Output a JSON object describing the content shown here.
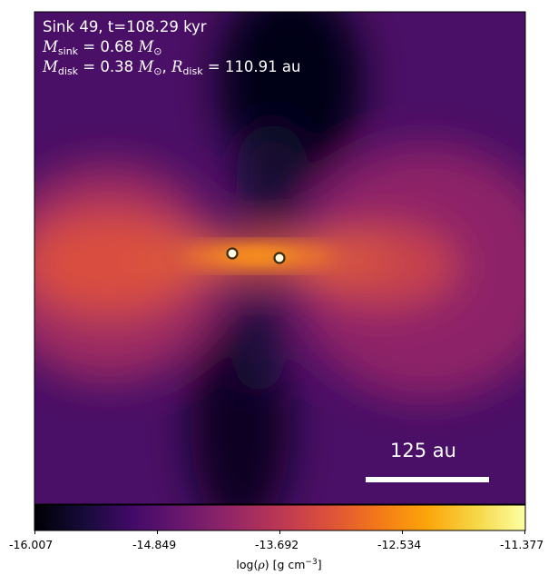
{
  "panel": {
    "title_line": "Sink 49, t=108.29 kyr",
    "m_sink": {
      "symbol": "M",
      "subscript": "sink",
      "value_text": " = 0.68 ",
      "unit": "M",
      "unit_sub": "⊙"
    },
    "m_disk": {
      "symbol": "M",
      "subscript": "disk",
      "value_text": " = 0.38 ",
      "unit": "M",
      "unit_sub": "⊙"
    },
    "r_disk": {
      "symbol": "R",
      "subscript": "disk",
      "value_text": " = 110.91 au"
    },
    "scale_bar_label": "125 au"
  },
  "colorbar": {
    "colormap": "inferno",
    "ticks": [
      "-16.007",
      "-14.849",
      "-13.692",
      "-12.534",
      "-11.377"
    ],
    "label_prefix": "log(",
    "label_rho": "ρ",
    "label_units": ") [g cm",
    "label_exp": "−3",
    "label_suffix": "]",
    "range": [
      -16.007,
      -11.377
    ]
  },
  "sinks": [
    {
      "name": "sink-particle-1"
    },
    {
      "name": "sink-particle-2"
    }
  ],
  "colors": {
    "background": "#ffffff",
    "annotation_text": "#ffffff",
    "sink_fill": "#fffbe0",
    "sink_edge": "#3a2a10"
  }
}
